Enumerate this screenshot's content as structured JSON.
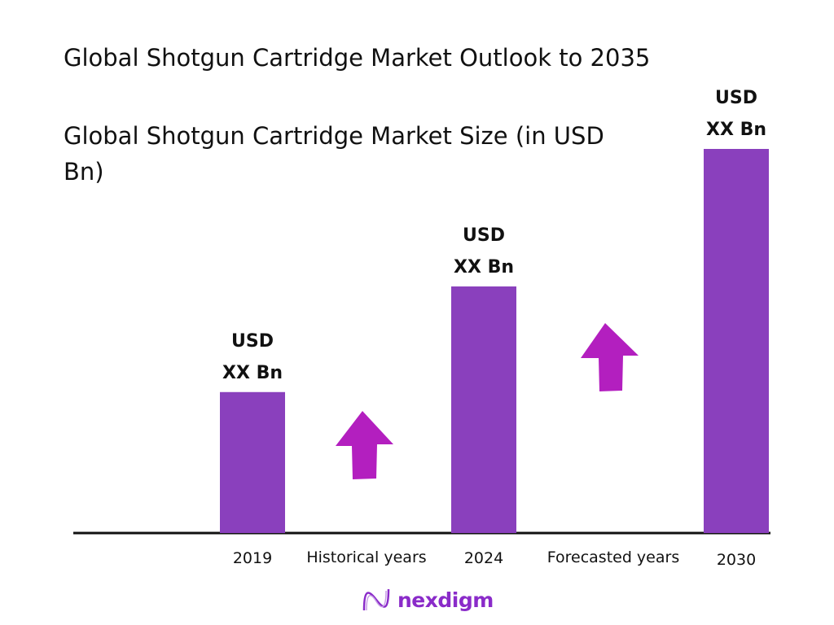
{
  "chart_data": {
    "type": "bar",
    "title": "Global Shotgun Cartridge Market Outlook to 2035",
    "subtitle": "Global Shotgun Cartridge Market Size (in USD Bn)",
    "categories": [
      "2019",
      "2024",
      "2030"
    ],
    "values": [
      36.7,
      64.2,
      100
    ],
    "data_labels": [
      {
        "line1": "USD",
        "line2": "XX Bn"
      },
      {
        "line1": "USD",
        "line2": "XX Bn"
      },
      {
        "line1": "USD",
        "line2": "XX Bn"
      }
    ],
    "period_labels": [
      "Historical years",
      "Forecasted years"
    ],
    "ylim": [
      0,
      100
    ],
    "grid": false,
    "legend": "none",
    "colors": {
      "bar": "#8a40bd",
      "arrow": "#b31fbf",
      "axis": "#111111"
    }
  },
  "brand": {
    "name": "nexdigm",
    "color": "#8a2bc9"
  }
}
